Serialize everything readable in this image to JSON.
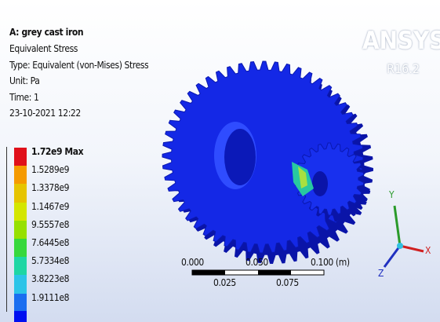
{
  "header": {
    "title": "A: grey cast iron",
    "lines": [
      "Equivalent Stress",
      "Type: Equivalent (von-Mises) Stress",
      "Unit: Pa",
      "Time: 1",
      "23-10-2021 12:22"
    ]
  },
  "legend": {
    "entries": [
      {
        "label": "1.72e9 Max",
        "color": "#e0101a"
      },
      {
        "label": "1.5289e9",
        "color": "#f59a00"
      },
      {
        "label": "1.3378e9",
        "color": "#e6c400"
      },
      {
        "label": "1.1467e9",
        "color": "#d4e600"
      },
      {
        "label": "9.5557e8",
        "color": "#96e000"
      },
      {
        "label": "7.6445e8",
        "color": "#36d83c"
      },
      {
        "label": "5.7334e8",
        "color": "#1ed6a4"
      },
      {
        "label": "3.8223e8",
        "color": "#2cc4e8"
      },
      {
        "label": "1.9111e8",
        "color": "#1a6ef0"
      }
    ]
  },
  "logo": {
    "name": "ANSYS",
    "version": "R16.2"
  },
  "scale_bar": {
    "top": [
      "0.000",
      "0.050",
      "0.100 (m)"
    ],
    "bottom": [
      "0.025",
      "0.075"
    ]
  },
  "triad": {
    "x": "X",
    "y": "Y",
    "z": "Z"
  }
}
